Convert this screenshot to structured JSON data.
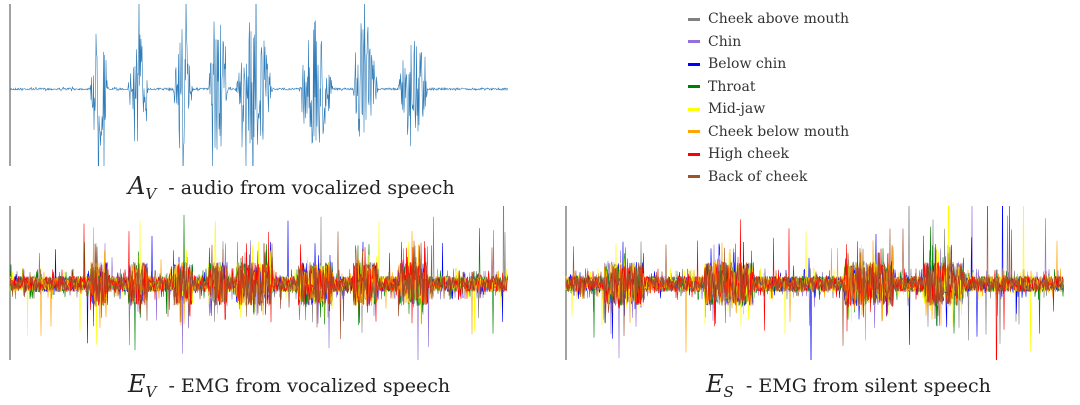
{
  "panels": {
    "audio": {
      "symbol": "A",
      "subscript": "V",
      "caption": "- audio from vocalized speech",
      "color": "#2f7cb8"
    },
    "emg_vocalized": {
      "symbol": "E",
      "subscript": "V",
      "caption": "- EMG from vocalized speech"
    },
    "emg_silent": {
      "symbol": "E",
      "subscript": "S",
      "caption": "- EMG from silent speech"
    }
  },
  "legend": [
    {
      "label": "Cheek above mouth",
      "color": "#808080"
    },
    {
      "label": "Chin",
      "color": "#9370db"
    },
    {
      "label": "Below chin",
      "color": "#0000ff"
    },
    {
      "label": "Throat",
      "color": "#008000"
    },
    {
      "label": "Mid-jaw",
      "color": "#ffff00"
    },
    {
      "label": "Cheek below mouth",
      "color": "#ffa500"
    },
    {
      "label": "High cheek",
      "color": "#ff0000"
    },
    {
      "label": "Back of cheek",
      "color": "#a0522d"
    }
  ]
}
